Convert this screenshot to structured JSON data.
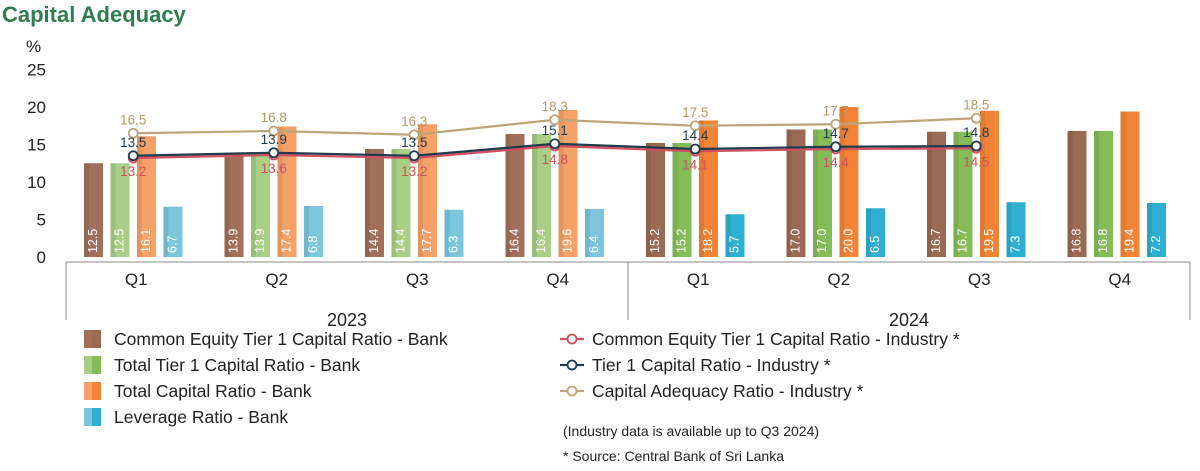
{
  "chart_data": {
    "type": "bar",
    "title": "Capital Adequacy",
    "ylabel": "%",
    "ylim": [
      0,
      25
    ],
    "yticks": [
      0,
      5,
      10,
      15,
      20,
      25
    ],
    "quarters": [
      "Q1",
      "Q2",
      "Q3",
      "Q4",
      "Q1",
      "Q2",
      "Q3",
      "Q4"
    ],
    "years": [
      {
        "label": "2023",
        "span": [
          0,
          3
        ]
      },
      {
        "label": "2024",
        "span": [
          4,
          7
        ]
      }
    ],
    "bar_series": [
      {
        "name": "Common Equity Tier 1 Capital Ratio - Bank",
        "color": "#A0705A",
        "color_2024": "#9A6A52",
        "values": [
          12.5,
          13.9,
          14.4,
          16.4,
          15.2,
          17.0,
          16.7,
          16.8
        ]
      },
      {
        "name": "Total Tier 1 Capital Ratio - Bank",
        "color": "#A8CF85",
        "color_2024": "#86BC58",
        "values": [
          12.5,
          13.9,
          14.4,
          16.4,
          15.2,
          17.0,
          16.7,
          16.8
        ]
      },
      {
        "name": "Total Capital Ratio - Bank",
        "color": "#F6A168",
        "color_2024": "#F28438",
        "values": [
          16.1,
          17.4,
          17.7,
          19.6,
          18.2,
          20.0,
          19.5,
          19.4
        ]
      },
      {
        "name": "Leverage Ratio - Bank",
        "color": "#7CC6DE",
        "color_2024": "#2FB0D3",
        "values": [
          6.7,
          6.8,
          6.3,
          6.4,
          5.7,
          6.5,
          7.3,
          7.2
        ]
      }
    ],
    "line_series": [
      {
        "name": "Common Equity Tier 1 Capital Ratio - Industry *",
        "color": "#D14F5F",
        "label_color": "#D14F5F",
        "values": [
          13.2,
          13.6,
          13.2,
          14.8,
          14.1,
          14.4,
          14.5
        ]
      },
      {
        "name": "Tier 1 Capital Ratio - Industry *",
        "color": "#1F3C4F",
        "label_color": "#1F3C4F",
        "values": [
          13.5,
          13.9,
          13.5,
          15.1,
          14.4,
          14.7,
          14.8
        ]
      },
      {
        "name": "Capital Adequacy Ratio - Industry *",
        "color": "#BDA57A",
        "label_color": "#B39A66",
        "values": [
          16.5,
          16.8,
          16.3,
          18.3,
          17.5,
          17.7,
          18.5
        ]
      }
    ],
    "legend_placement": "bottom",
    "grid": false
  },
  "notes": {
    "availability": "(Industry data is available up to Q3 2024)",
    "source": "* Source: Central Bank of Sri Lanka"
  },
  "colors": {
    "title": "#2E7D4F",
    "axis": "#888888",
    "text": "#222222"
  }
}
